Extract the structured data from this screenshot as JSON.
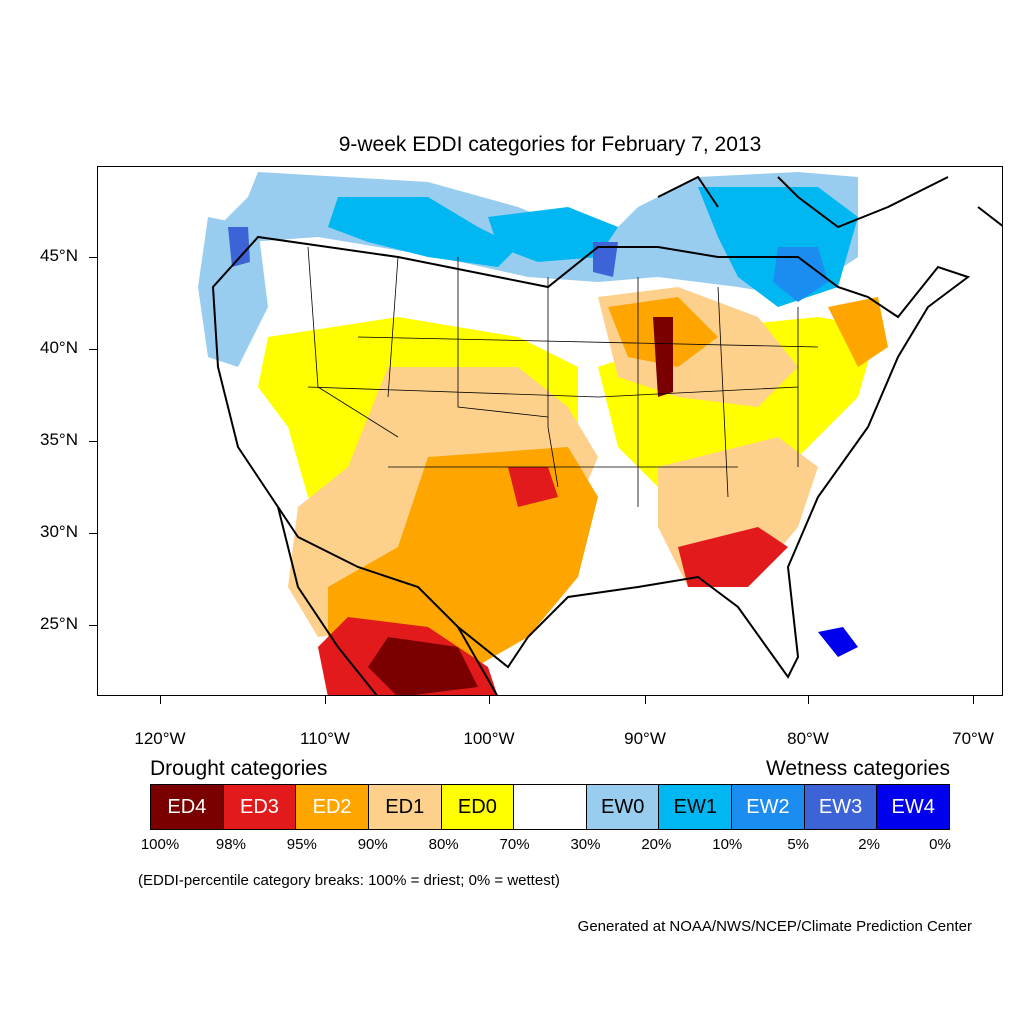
{
  "title": "9-week EDDI categories for February 7, 2013",
  "lat_labels": [
    "45°N",
    "40°N",
    "35°N",
    "30°N",
    "25°N"
  ],
  "lon_labels": [
    "120°W",
    "110°W",
    "100°W",
    "90°W",
    "80°W",
    "70°W"
  ],
  "drought_heading": "Drought categories",
  "wetness_heading": "Wetness categories",
  "legend": [
    {
      "label": "ED4",
      "color": "#7a0000",
      "text_color": "#ffffff"
    },
    {
      "label": "ED3",
      "color": "#e31a1c",
      "text_color": "#ffffff"
    },
    {
      "label": "ED2",
      "color": "#ffa500",
      "text_color": "#ffffff"
    },
    {
      "label": "ED1",
      "color": "#fdd08b",
      "text_color": "#000000"
    },
    {
      "label": "ED0",
      "color": "#ffff00",
      "text_color": "#000000"
    },
    {
      "label": "",
      "color": "#ffffff",
      "text_color": "#000000"
    },
    {
      "label": "EW0",
      "color": "#99cdef",
      "text_color": "#000000"
    },
    {
      "label": "EW1",
      "color": "#00b7f2",
      "text_color": "#000000"
    },
    {
      "label": "EW2",
      "color": "#1c8df0",
      "text_color": "#ffffff"
    },
    {
      "label": "EW3",
      "color": "#3c64d6",
      "text_color": "#ffffff"
    },
    {
      "label": "EW4",
      "color": "#0000ee",
      "text_color": "#ffffff"
    }
  ],
  "percent_breaks": [
    "100%",
    "98%",
    "95%",
    "90%",
    "80%",
    "70%",
    "30%",
    "20%",
    "10%",
    "5%",
    "2%",
    "0%"
  ],
  "note": "(EDDI-percentile category breaks: 100% = driest; 0% = wettest)",
  "credit": "Generated at NOAA/NWS/NCEP/Climate Prediction Center"
}
